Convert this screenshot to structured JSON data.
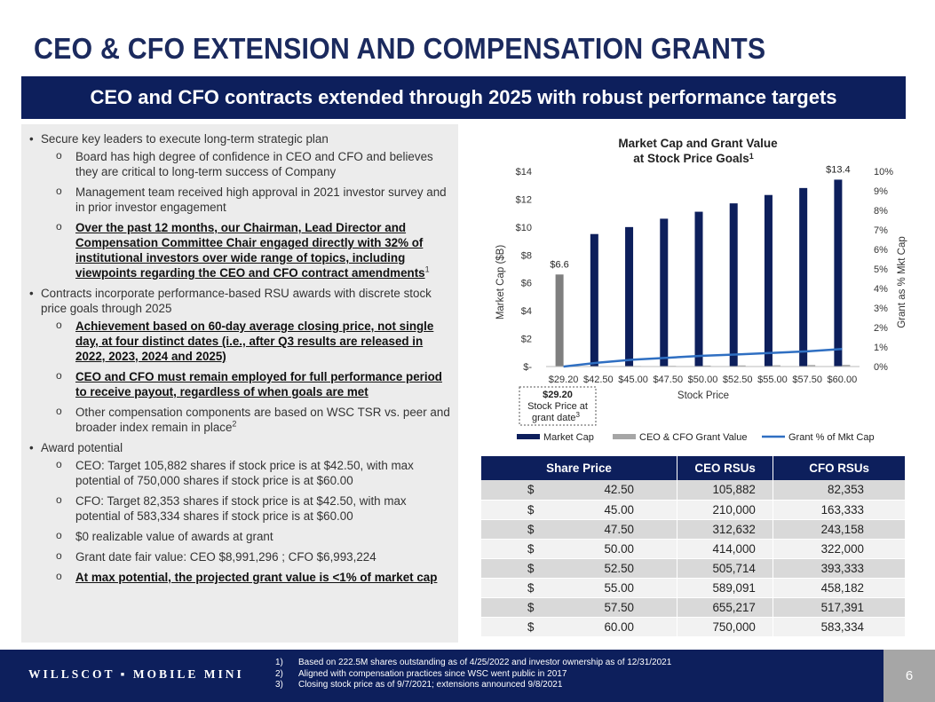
{
  "title": "CEO & CFO EXTENSION AND COMPENSATION GRANTS",
  "banner": "CEO and CFO contracts extended through 2025 with robust performance targets",
  "left": {
    "b1": "Secure key leaders to execute long-term strategic plan",
    "b1_s1": "Board has high degree of confidence in CEO and CFO and believes they are critical to long-term success of Company",
    "b1_s2": "Management team received high approval in 2021 investor survey and in prior investor engagement",
    "b1_s3": "Over the past 12 months, our Chairman, Lead Director and Compensation Committee Chair engaged directly with 32% of institutional investors over wide range of topics, including viewpoints regarding the CEO and CFO contract amendments",
    "b1_s3_sup": "1",
    "b2": "Contracts incorporate performance-based RSU awards with discrete stock price goals through 2025",
    "b2_s1": "Achievement based on 60-day average closing price, not single day, at four distinct dates (i.e., after Q3 results are released in 2022, 2023, 2024 and 2025)",
    "b2_s2": "CEO and CFO must remain employed for full performance period to receive payout, regardless of when goals are met",
    "b2_s3": "Other compensation components are based on WSC TSR vs. peer and broader index remain in place",
    "b2_s3_sup": "2",
    "b3": "Award potential",
    "b3_s1": "CEO: Target 105,882 shares if stock price is at $42.50, with max potential of 750,000 shares if stock price is at $60.00",
    "b3_s2": "CFO: Target 82,353 shares if stock price is at $42.50, with max potential of 583,334 shares if stock price is at $60.00",
    "b3_s3": "$0 realizable value of awards at grant",
    "b3_s4": "Grant date fair value: CEO $8,991,296 ; CFO $6,993,224",
    "b3_s5": "At max potential, the projected grant value is <1% of market cap"
  },
  "chart_data": {
    "type": "bar",
    "title": "Market Cap and Grant Value",
    "subtitle": "at Stock Price Goals",
    "title_sup": "1",
    "xlabel": "Stock Price",
    "ylabel": "Market Cap ($B)",
    "y2label": "Grant as % Mkt Cap",
    "categories": [
      "$29.20",
      "$42.50",
      "$45.00",
      "$47.50",
      "$50.00",
      "$52.50",
      "$55.00",
      "$57.50",
      "$60.00"
    ],
    "ylim": [
      0,
      14
    ],
    "y_ticks": [
      "$-",
      "$2",
      "$4",
      "$6",
      "$8",
      "$10",
      "$12",
      "$14"
    ],
    "y2lim": [
      0,
      10
    ],
    "y2_ticks": [
      "0%",
      "1%",
      "2%",
      "3%",
      "4%",
      "5%",
      "6%",
      "7%",
      "8%",
      "9%",
      "10%"
    ],
    "series": [
      {
        "name": "Market Cap",
        "type": "bar",
        "color": "#0d1f5c",
        "values": [
          6.6,
          9.5,
          10.0,
          10.6,
          11.1,
          11.7,
          12.3,
          12.8,
          13.4
        ]
      },
      {
        "name": "CEO & CFO Grant Value",
        "type": "bar",
        "color": "#a6a6a6",
        "values": [
          0,
          0.02,
          0.04,
          0.05,
          0.07,
          0.08,
          0.09,
          0.11,
          0.12
        ]
      },
      {
        "name": "Grant % of Mkt Cap",
        "type": "line",
        "axis": "y2",
        "color": "#2f6fc2",
        "values": [
          0.0,
          0.2,
          0.35,
          0.45,
          0.55,
          0.62,
          0.7,
          0.78,
          0.9
        ]
      }
    ],
    "data_labels": {
      "first": "$6.6",
      "last": "$13.4"
    },
    "first_bar_color": "#7f7f7f",
    "callout": {
      "line1": "$29.20",
      "line2": "Stock Price at",
      "line3": "grant date",
      "sup": "3"
    }
  },
  "table": {
    "headers": [
      "Share Price",
      "CEO RSUs",
      "CFO RSUs"
    ],
    "rows": [
      {
        "cur": "$",
        "price": "42.50",
        "ceo": "105,882",
        "cfo": "82,353"
      },
      {
        "cur": "$",
        "price": "45.00",
        "ceo": "210,000",
        "cfo": "163,333"
      },
      {
        "cur": "$",
        "price": "47.50",
        "ceo": "312,632",
        "cfo": "243,158"
      },
      {
        "cur": "$",
        "price": "50.00",
        "ceo": "414,000",
        "cfo": "322,000"
      },
      {
        "cur": "$",
        "price": "52.50",
        "ceo": "505,714",
        "cfo": "393,333"
      },
      {
        "cur": "$",
        "price": "55.00",
        "ceo": "589,091",
        "cfo": "458,182"
      },
      {
        "cur": "$",
        "price": "57.50",
        "ceo": "655,217",
        "cfo": "517,391"
      },
      {
        "cur": "$",
        "price": "60.00",
        "ceo": "750,000",
        "cfo": "583,334"
      }
    ]
  },
  "footer": {
    "logo": "WILLSCOT ▪ MOBILE MINI",
    "notes": [
      {
        "num": "1)",
        "text": "Based on 222.5M shares outstanding as of 4/25/2022 and investor ownership as of 12/31/2021"
      },
      {
        "num": "2)",
        "text": "Aligned with compensation practices since WSC went public in 2017"
      },
      {
        "num": "3)",
        "text": "Closing stock price as of 9/7/2021; extensions announced 9/8/2021"
      }
    ],
    "page": "6"
  }
}
